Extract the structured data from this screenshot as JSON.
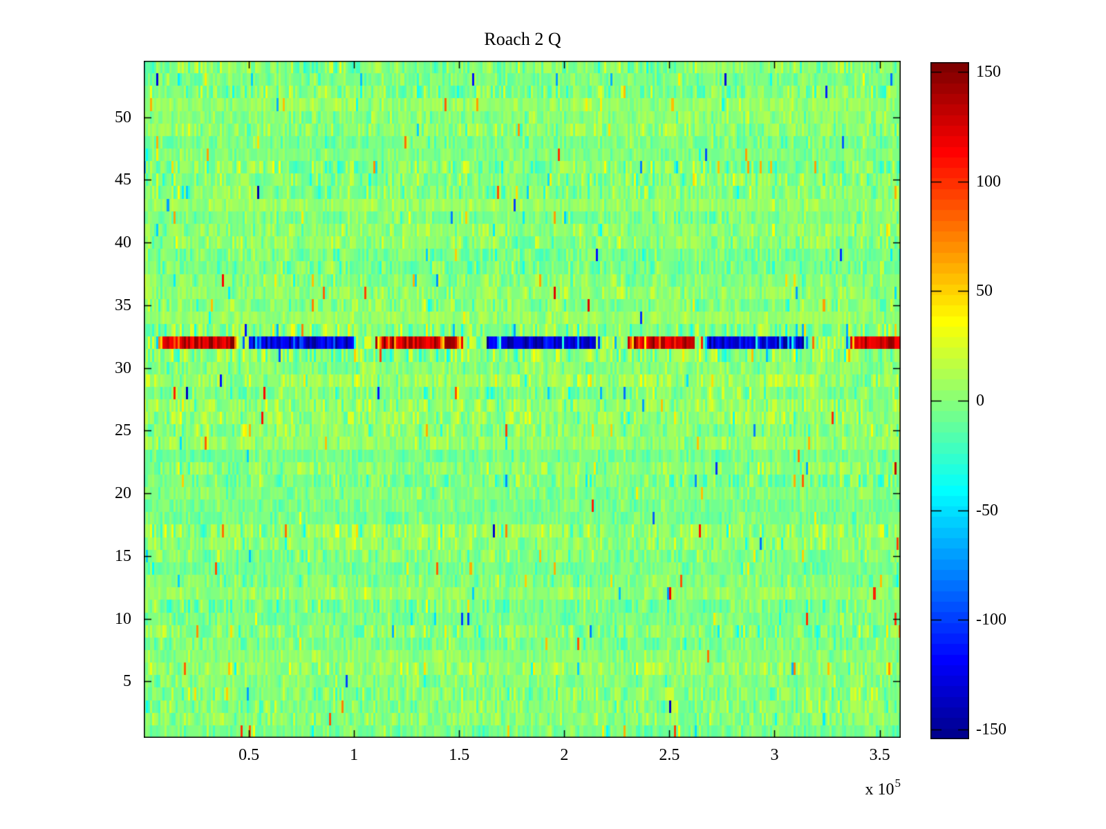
{
  "chart_data": {
    "type": "heatmap",
    "title": "Roach 2 Q",
    "xlabel": "",
    "ylabel": "",
    "x_exponent_prefix": "x 10",
    "x_exponent": "5",
    "x_range_1e5": [
      0,
      3.6
    ],
    "x_tick_values_1e5": [
      0.5,
      1,
      1.5,
      2,
      2.5,
      3,
      3.5
    ],
    "x_tick_labels": [
      "0.5",
      "1",
      "1.5",
      "2",
      "2.5",
      "3",
      "3.5"
    ],
    "y_range_rows": [
      0.5,
      54.5
    ],
    "y_tick_values": [
      5,
      10,
      15,
      20,
      25,
      30,
      35,
      40,
      45,
      50
    ],
    "y_tick_labels": [
      "5",
      "10",
      "15",
      "20",
      "25",
      "30",
      "35",
      "40",
      "45",
      "50"
    ],
    "rows": 54,
    "cols": 360,
    "colormap": "jet",
    "colormap_levels": 64,
    "color_range": [
      -154.5,
      154.5
    ],
    "colorbar_tick_values": [
      150,
      100,
      50,
      0,
      -50,
      -100,
      -150
    ],
    "colorbar_tick_labels": [
      "150",
      "100",
      "50",
      "0",
      "-50",
      "-100",
      "-150"
    ],
    "background_value_color": "#80ff80",
    "noise": {
      "seed": 1337,
      "row_bias_max": 6.5,
      "row_amp_min": 8.5,
      "row_amp_spread": 9,
      "outlier_prob_max": 0.035,
      "outlier_mag_min": 35,
      "outlier_mag_spread": 110,
      "neighbor_rows": [
        31,
        33
      ],
      "neighbor_amp": 19,
      "neighbor_outlier_prob": 0.05,
      "neighbor_outlier_mag": 140
    },
    "signal_row": 32,
    "signal_segments_1e5": [
      {
        "from": 0.07,
        "to": 0.45,
        "polarity": 1
      },
      {
        "from": 0.5,
        "to": 1.01,
        "polarity": -1
      },
      {
        "from": 1.1,
        "to": 1.52,
        "polarity": 1
      },
      {
        "from": 1.63,
        "to": 2.15,
        "polarity": -1
      },
      {
        "from": 2.3,
        "to": 2.62,
        "polarity": 1
      },
      {
        "from": 2.67,
        "to": 3.16,
        "polarity": -1
      },
      {
        "from": 3.36,
        "to": 3.6,
        "polarity": 1
      }
    ]
  }
}
